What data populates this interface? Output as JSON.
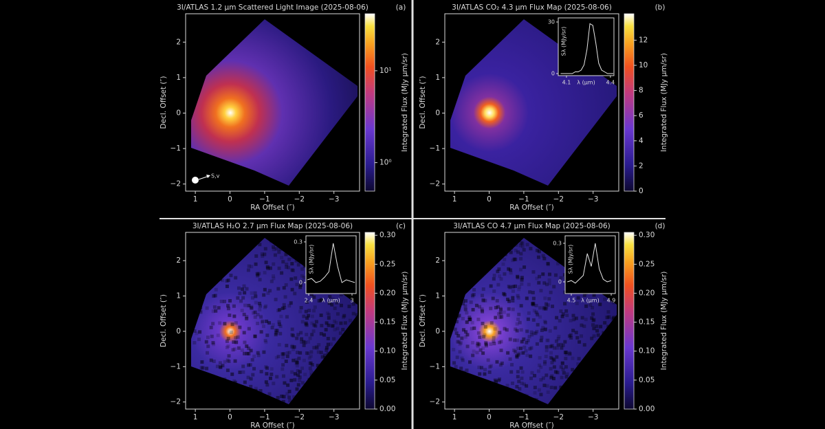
{
  "chart_data": [
    {
      "type": "heatmap",
      "title": "3I/ATLAS 1.2 μm Scattered Light Image (2025-08-06)",
      "panel_label": "(a)",
      "xlabel": "RA Offset (″)",
      "ylabel": "Decl. Offset (″)",
      "xlim": [
        1.28,
        -3.74
      ],
      "ylim": [
        -2.2,
        2.8
      ],
      "xticks": [
        1,
        0,
        {
          "value": -1,
          "label": "−1"
        },
        {
          "value": -2,
          "label": "−2"
        },
        {
          "value": -3,
          "label": "−3"
        }
      ],
      "yticks": [
        {
          "value": -2,
          "label": "−2"
        },
        {
          "value": -1,
          "label": "−1"
        },
        0,
        1,
        2
      ],
      "annotation": "S,v",
      "colorbar": {
        "label": "Integrated Flux (MJy μm/sr)",
        "log": true,
        "lim": [
          0.49,
          41.7
        ],
        "ticks": [
          {
            "value": 1,
            "label": "10⁰"
          },
          {
            "value": 10,
            "label": "10¹"
          }
        ]
      }
    },
    {
      "type": "heatmap",
      "title": "3I/ATLAS CO₂ 4.3 μm Flux Map (2025-08-06)",
      "panel_label": "(b)",
      "xlabel": "RA Offset (″)",
      "ylabel": "Decl. Offset (″)",
      "xlim": [
        1.28,
        -3.74
      ],
      "ylim": [
        -2.2,
        2.8
      ],
      "xticks": [
        1,
        0,
        {
          "value": -1,
          "label": "−1"
        },
        {
          "value": -2,
          "label": "−2"
        },
        {
          "value": -3,
          "label": "−3"
        }
      ],
      "yticks": [
        {
          "value": -2,
          "label": "−2"
        },
        {
          "value": -1,
          "label": "−1"
        },
        0,
        1,
        2
      ],
      "colorbar": {
        "label": "Integrated Flux (MJy μm/sr)",
        "log": false,
        "lim": [
          0,
          14.1
        ],
        "ticks": [
          0,
          2,
          4,
          6,
          8,
          10,
          12
        ]
      },
      "inset": {
        "xlabel": "λ (μm)",
        "ylabel": "Sλ (MJy/sr)",
        "color": "#e8e8e8",
        "xlim": [
          4.044,
          4.424
        ],
        "ylim": [
          -1.2,
          32.4
        ],
        "xticks": [
          4.1,
          4.4
        ],
        "yticks": [
          0,
          30
        ],
        "x": [
          4.06,
          4.08,
          4.1,
          4.12,
          4.14,
          4.16,
          4.18,
          4.2,
          4.22,
          4.24,
          4.26,
          4.28,
          4.3,
          4.32,
          4.34,
          4.36,
          4.38,
          4.4,
          4.42
        ],
        "values": [
          0,
          0,
          0,
          0,
          0,
          1,
          1,
          2,
          5,
          14,
          29,
          28,
          18,
          6,
          2,
          1,
          0,
          0,
          0
        ]
      }
    },
    {
      "type": "heatmap",
      "title": "3I/ATLAS H₂O 2.7 μm Flux Map (2025-08-06)",
      "panel_label": "(c)",
      "xlabel": "RA Offset (″)",
      "ylabel": "Decl. Offset (″)",
      "xlim": [
        1.28,
        -3.74
      ],
      "ylim": [
        -2.2,
        2.8
      ],
      "xticks": [
        1,
        0,
        {
          "value": -1,
          "label": "−1"
        },
        {
          "value": -2,
          "label": "−2"
        },
        {
          "value": -3,
          "label": "−3"
        }
      ],
      "yticks": [
        {
          "value": -2,
          "label": "−2"
        },
        {
          "value": -1,
          "label": "−1"
        },
        0,
        1,
        2
      ],
      "colorbar": {
        "label": "Integrated Flux (MJy μm/sr)",
        "log": false,
        "lim": [
          0,
          0.305
        ],
        "ticks": [
          {
            "value": 0,
            "label": "0.00"
          },
          {
            "value": 0.05,
            "label": "0.05"
          },
          {
            "value": 0.1,
            "label": "0.10"
          },
          {
            "value": 0.15,
            "label": "0.15"
          },
          {
            "value": 0.2,
            "label": "0.20"
          },
          {
            "value": 0.25,
            "label": "0.25"
          },
          {
            "value": 0.3,
            "label": "0.30"
          }
        ]
      },
      "inset": {
        "xlabel": "λ (μm)",
        "ylabel": "Sλ (MJy/sr)",
        "color": "#e8e8e8",
        "xlim": [
          2.362,
          3.057
        ],
        "ylim": [
          -0.081,
          0.345
        ],
        "xticks": [
          2.4,
          3.0
        ],
        "yticks": [
          0,
          0.3
        ],
        "x": [
          2.38,
          2.44,
          2.5,
          2.56,
          2.62,
          2.68,
          2.74,
          2.8,
          2.86,
          2.92,
          2.98,
          3.04
        ],
        "values": [
          0.02,
          0.03,
          0.0,
          0.01,
          0.04,
          0.08,
          0.29,
          0.12,
          0.0,
          0.02,
          0.01,
          0.0
        ]
      }
    },
    {
      "type": "heatmap",
      "title": "3I/ATLAS CO 4.7 μm Flux Map (2025-08-06)",
      "panel_label": "(d)",
      "xlabel": "RA Offset (″)",
      "ylabel": "Decl. Offset (″)",
      "xlim": [
        1.28,
        -3.74
      ],
      "ylim": [
        -2.2,
        2.8
      ],
      "xticks": [
        1,
        0,
        {
          "value": -1,
          "label": "−1"
        },
        {
          "value": -2,
          "label": "−2"
        },
        {
          "value": -3,
          "label": "−3"
        }
      ],
      "yticks": [
        {
          "value": -2,
          "label": "−2"
        },
        {
          "value": -1,
          "label": "−1"
        },
        0,
        1,
        2
      ],
      "colorbar": {
        "label": "Integrated Flux (MJy μm/sr)",
        "log": false,
        "lim": [
          0,
          0.305
        ],
        "ticks": [
          {
            "value": 0,
            "label": "0.00"
          },
          {
            "value": 0.05,
            "label": "0.05"
          },
          {
            "value": 0.1,
            "label": "0.10"
          },
          {
            "value": 0.15,
            "label": "0.15"
          },
          {
            "value": 0.2,
            "label": "0.20"
          },
          {
            "value": 0.25,
            "label": "0.25"
          },
          {
            "value": 0.3,
            "label": "0.30"
          }
        ]
      },
      "inset": {
        "xlabel": "λ (μm)",
        "ylabel": "Sλ (MJy/sr)",
        "color": "#e8e8e8",
        "xlim": [
          4.438,
          4.941
        ],
        "ylim": [
          -0.091,
          0.358
        ],
        "xticks": [
          4.5,
          4.9
        ],
        "yticks": [
          0,
          0.3
        ],
        "x": [
          4.46,
          4.5,
          4.54,
          4.58,
          4.62,
          4.66,
          4.7,
          4.74,
          4.78,
          4.82,
          4.86,
          4.9
        ],
        "values": [
          0.0,
          0.01,
          -0.01,
          0.02,
          0.05,
          0.22,
          0.12,
          0.3,
          0.1,
          0.02,
          0.0,
          0.01
        ]
      }
    }
  ]
}
